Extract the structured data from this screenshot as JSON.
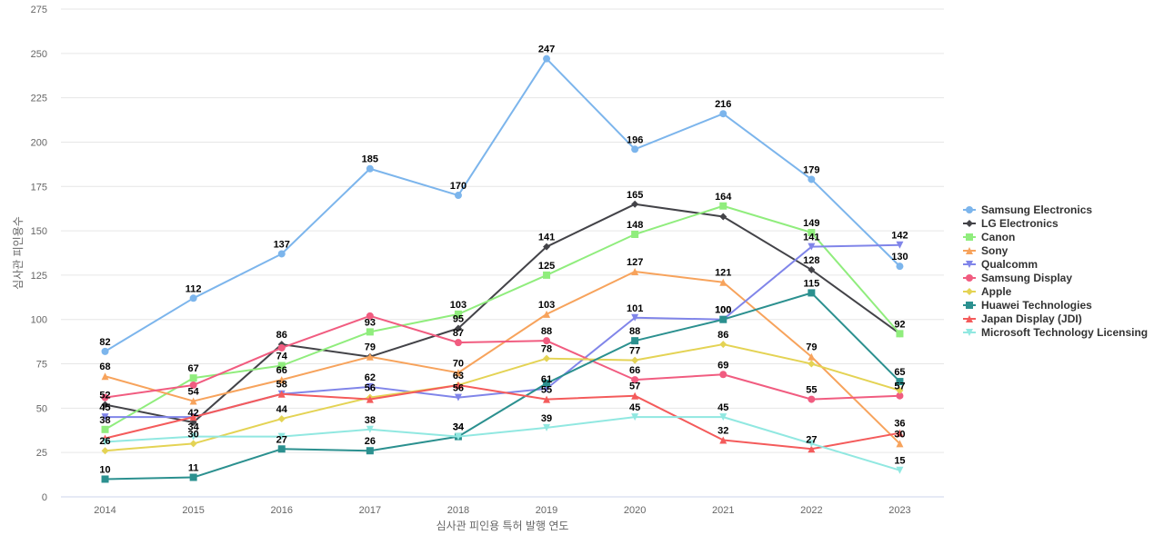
{
  "chart_data": {
    "type": "line",
    "title": "",
    "xlabel": "심사관 피인용 특허 발행 연도",
    "ylabel": "심사관 피인용수",
    "categories": [
      "2014",
      "2015",
      "2016",
      "2017",
      "2018",
      "2019",
      "2020",
      "2021",
      "2022",
      "2023"
    ],
    "ylim": [
      0,
      275
    ],
    "yticks": [
      0,
      25,
      50,
      75,
      100,
      125,
      150,
      175,
      200,
      225,
      250,
      275
    ],
    "grid": true,
    "legend": "right",
    "series": [
      {
        "name": "Samsung Electronics",
        "color": "#7cb5ec",
        "marker": "circle",
        "values": [
          82,
          112,
          137,
          185,
          170,
          247,
          196,
          216,
          179,
          130
        ]
      },
      {
        "name": "LG Electronics",
        "color": "#434348",
        "marker": "diamond",
        "values": [
          52,
          42,
          86,
          79,
          95,
          141,
          165,
          158,
          128,
          92
        ]
      },
      {
        "name": "Canon",
        "color": "#90ed7d",
        "marker": "square",
        "values": [
          38,
          67,
          74,
          93,
          103,
          125,
          148,
          164,
          149,
          92
        ]
      },
      {
        "name": "Sony",
        "color": "#f7a35c",
        "marker": "triangle",
        "values": [
          68,
          54,
          66,
          79,
          70,
          103,
          127,
          121,
          79,
          30
        ]
      },
      {
        "name": "Qualcomm",
        "color": "#8085e9",
        "marker": "triangle-down",
        "values": [
          45,
          45,
          58,
          62,
          56,
          61,
          101,
          100,
          141,
          142
        ]
      },
      {
        "name": "Samsung Display",
        "color": "#f15c80",
        "marker": "circle",
        "values": [
          56,
          63,
          84,
          102,
          87,
          88,
          66,
          69,
          55,
          57
        ]
      },
      {
        "name": "Apple",
        "color": "#e4d354",
        "marker": "diamond",
        "values": [
          26,
          30,
          44,
          56,
          63,
          78,
          77,
          86,
          75,
          60
        ]
      },
      {
        "name": "Huawei Technologies",
        "color": "#2b908f",
        "marker": "square",
        "values": [
          10,
          11,
          27,
          26,
          34,
          64,
          88,
          100,
          115,
          65
        ]
      },
      {
        "name": "Japan Display (JDI)",
        "color": "#f45b5b",
        "marker": "triangle",
        "values": [
          33,
          45,
          58,
          55,
          63,
          55,
          57,
          32,
          27,
          36
        ]
      },
      {
        "name": "Microsoft Technology Licensing",
        "color": "#91e8e1",
        "marker": "triangle-down",
        "values": [
          31,
          34,
          34,
          38,
          34,
          39,
          45,
          45,
          30,
          15
        ]
      }
    ],
    "data_labels": [
      {
        "series": "Samsung Electronics",
        "x": "2014",
        "y": 82
      },
      {
        "series": "Samsung Electronics",
        "x": "2015",
        "y": 112
      },
      {
        "series": "Samsung Electronics",
        "x": "2016",
        "y": 137
      },
      {
        "series": "Samsung Electronics",
        "x": "2017",
        "y": 185
      },
      {
        "series": "Samsung Electronics",
        "x": "2018",
        "y": 170
      },
      {
        "series": "Samsung Electronics",
        "x": "2019",
        "y": 247
      },
      {
        "series": "Samsung Electronics",
        "x": "2020",
        "y": 196
      },
      {
        "series": "Samsung Electronics",
        "x": "2021",
        "y": 216
      },
      {
        "series": "Samsung Electronics",
        "x": "2022",
        "y": 179
      },
      {
        "series": "Samsung Electronics",
        "x": "2023",
        "y": 130
      },
      {
        "series": "LG Electronics",
        "x": "2014",
        "y": 52
      },
      {
        "series": "LG Electronics",
        "x": "2015",
        "y": 42
      },
      {
        "series": "LG Electronics",
        "x": "2016",
        "y": 86
      },
      {
        "series": "LG Electronics",
        "x": "2018",
        "y": 95
      },
      {
        "series": "LG Electronics",
        "x": "2019",
        "y": 141
      },
      {
        "series": "LG Electronics",
        "x": "2020",
        "y": 165
      },
      {
        "series": "LG Electronics",
        "x": "2022",
        "y": 128
      },
      {
        "series": "LG Electronics",
        "x": "2023",
        "y": 92
      },
      {
        "series": "Canon",
        "x": "2014",
        "y": 38
      },
      {
        "series": "Canon",
        "x": "2015",
        "y": 67
      },
      {
        "series": "Canon",
        "x": "2016",
        "y": 74
      },
      {
        "series": "Canon",
        "x": "2017",
        "y": 93
      },
      {
        "series": "Canon",
        "x": "2018",
        "y": 103
      },
      {
        "series": "Canon",
        "x": "2019",
        "y": 125
      },
      {
        "series": "Canon",
        "x": "2020",
        "y": 148
      },
      {
        "series": "Canon",
        "x": "2021",
        "y": 164
      },
      {
        "series": "Canon",
        "x": "2022",
        "y": 149
      },
      {
        "series": "Sony",
        "x": "2014",
        "y": 68
      },
      {
        "series": "Sony",
        "x": "2015",
        "y": 54
      },
      {
        "series": "Sony",
        "x": "2016",
        "y": 66
      },
      {
        "series": "Sony",
        "x": "2017",
        "y": 79
      },
      {
        "series": "Sony",
        "x": "2018",
        "y": 70
      },
      {
        "series": "Sony",
        "x": "2019",
        "y": 103
      },
      {
        "series": "Sony",
        "x": "2020",
        "y": 127
      },
      {
        "series": "Sony",
        "x": "2021",
        "y": 121
      },
      {
        "series": "Sony",
        "x": "2022",
        "y": 79
      },
      {
        "series": "Sony",
        "x": "2023",
        "y": 30
      },
      {
        "series": "Qualcomm",
        "x": "2014",
        "y": 45
      },
      {
        "series": "Qualcomm",
        "x": "2016",
        "y": 58
      },
      {
        "series": "Qualcomm",
        "x": "2017",
        "y": 62
      },
      {
        "series": "Qualcomm",
        "x": "2018",
        "y": 56
      },
      {
        "series": "Qualcomm",
        "x": "2019",
        "y": 61
      },
      {
        "series": "Qualcomm",
        "x": "2020",
        "y": 101
      },
      {
        "series": "Qualcomm",
        "x": "2021",
        "y": 100
      },
      {
        "series": "Qualcomm",
        "x": "2022",
        "y": 141
      },
      {
        "series": "Qualcomm",
        "x": "2023",
        "y": 142
      },
      {
        "series": "Samsung Display",
        "x": "2018",
        "y": 87
      },
      {
        "series": "Samsung Display",
        "x": "2019",
        "y": 88
      },
      {
        "series": "Samsung Display",
        "x": "2020",
        "y": 66
      },
      {
        "series": "Samsung Display",
        "x": "2021",
        "y": 69
      },
      {
        "series": "Samsung Display",
        "x": "2022",
        "y": 55
      },
      {
        "series": "Samsung Display",
        "x": "2023",
        "y": 57
      },
      {
        "series": "Apple",
        "x": "2014",
        "y": 26
      },
      {
        "series": "Apple",
        "x": "2015",
        "y": 30
      },
      {
        "series": "Apple",
        "x": "2016",
        "y": 44
      },
      {
        "series": "Apple",
        "x": "2017",
        "y": 56
      },
      {
        "series": "Apple",
        "x": "2018",
        "y": 63
      },
      {
        "series": "Apple",
        "x": "2019",
        "y": 78
      },
      {
        "series": "Apple",
        "x": "2020",
        "y": 77
      },
      {
        "series": "Apple",
        "x": "2021",
        "y": 86
      },
      {
        "series": "Huawei Technologies",
        "x": "2014",
        "y": 10
      },
      {
        "series": "Huawei Technologies",
        "x": "2015",
        "y": 11
      },
      {
        "series": "Huawei Technologies",
        "x": "2016",
        "y": 27
      },
      {
        "series": "Huawei Technologies",
        "x": "2017",
        "y": 26
      },
      {
        "series": "Huawei Technologies",
        "x": "2018",
        "y": 34
      },
      {
        "series": "Huawei Technologies",
        "x": "2020",
        "y": 88
      },
      {
        "series": "Huawei Technologies",
        "x": "2021",
        "y": 100
      },
      {
        "series": "Huawei Technologies",
        "x": "2022",
        "y": 115
      },
      {
        "series": "Huawei Technologies",
        "x": "2023",
        "y": 65
      },
      {
        "series": "Japan Display (JDI)",
        "x": "2019",
        "y": 55
      },
      {
        "series": "Japan Display (JDI)",
        "x": "2020",
        "y": 57
      },
      {
        "series": "Japan Display (JDI)",
        "x": "2021",
        "y": 32
      },
      {
        "series": "Japan Display (JDI)",
        "x": "2022",
        "y": 27
      },
      {
        "series": "Japan Display (JDI)",
        "x": "2023",
        "y": 36
      },
      {
        "series": "Microsoft Technology Licensing",
        "x": "2015",
        "y": 34
      },
      {
        "series": "Microsoft Technology Licensing",
        "x": "2017",
        "y": 38
      },
      {
        "series": "Microsoft Technology Licensing",
        "x": "2018",
        "y": 34
      },
      {
        "series": "Microsoft Technology Licensing",
        "x": "2019",
        "y": 39
      },
      {
        "series": "Microsoft Technology Licensing",
        "x": "2020",
        "y": 45
      },
      {
        "series": "Microsoft Technology Licensing",
        "x": "2021",
        "y": 45
      },
      {
        "series": "Microsoft Technology Licensing",
        "x": "2023",
        "y": 15
      }
    ]
  }
}
